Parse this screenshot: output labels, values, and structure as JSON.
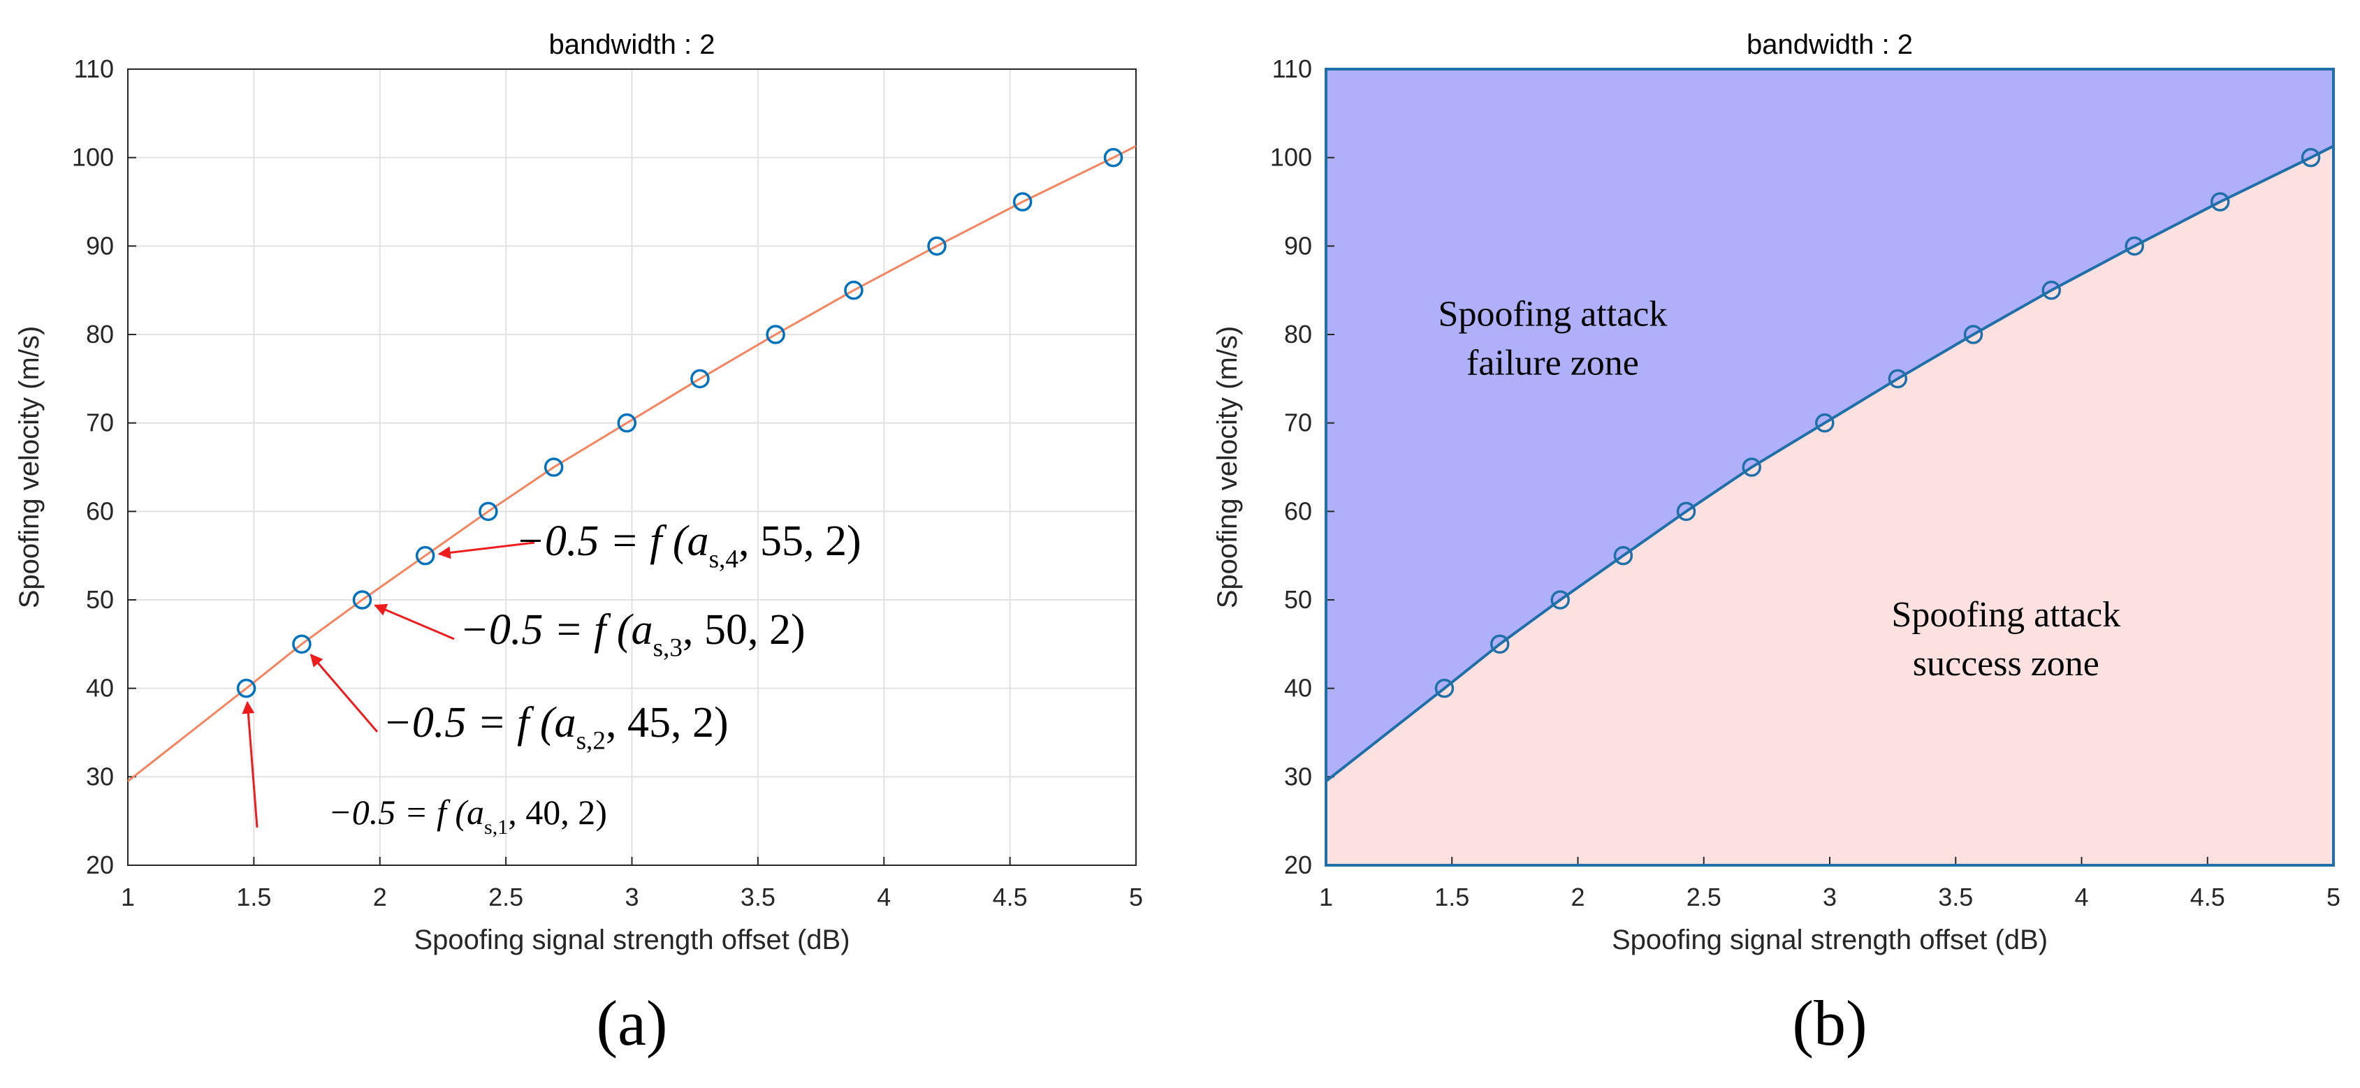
{
  "chart_data": [
    {
      "type": "line",
      "panel_label": "(a)",
      "title": "bandwidth : 2",
      "xlabel": "Spoofing signal strength offset (dB)",
      "ylabel": "Spoofing velocity (m/s)",
      "xlim": [
        1,
        5
      ],
      "ylim": [
        20,
        110
      ],
      "xticks": [
        "1",
        "1.5",
        "2",
        "2.5",
        "3",
        "3.5",
        "4",
        "4.5",
        "5"
      ],
      "yticks": [
        "20",
        "30",
        "40",
        "50",
        "60",
        "70",
        "80",
        "90",
        "100",
        "110"
      ],
      "grid": true,
      "series": [
        {
          "name": "fit",
          "style": "line",
          "color": "#f4845f",
          "x": [
            1.0,
            1.47,
            1.69,
            1.93,
            2.18,
            2.43,
            2.69,
            2.98,
            3.27,
            3.57,
            3.88,
            4.21,
            4.55,
            4.91,
            5.0
          ],
          "y": [
            29.5,
            40,
            45,
            50,
            55,
            60,
            65,
            70,
            75,
            80,
            85,
            90,
            95,
            100,
            101.3
          ]
        },
        {
          "name": "points",
          "style": "markers",
          "color": "#0072bd",
          "x": [
            1.47,
            1.69,
            1.93,
            2.18,
            2.43,
            2.69,
            2.98,
            3.27,
            3.57,
            3.88,
            4.21,
            4.55,
            4.91
          ],
          "y": [
            40,
            45,
            50,
            55,
            60,
            65,
            70,
            75,
            80,
            85,
            90,
            95,
            100
          ]
        }
      ],
      "annotations": [
        {
          "text": "−0.5 = f (a",
          "sub": "s,1",
          "tail": ", 40, 2)",
          "x": 1.47,
          "y": 40
        },
        {
          "text": "−0.5 = f (a",
          "sub": "s,2",
          "tail": ", 45, 2)",
          "x": 1.69,
          "y": 45
        },
        {
          "text": "−0.5 = f (a",
          "sub": "s,3",
          "tail": ", 50, 2)",
          "x": 1.93,
          "y": 50
        },
        {
          "text": "−0.5 = f (a",
          "sub": "s,4",
          "tail": ", 55, 2)",
          "x": 2.18,
          "y": 55
        }
      ]
    },
    {
      "type": "area",
      "panel_label": "(b)",
      "title": "bandwidth : 2",
      "xlabel": "Spoofing signal strength offset (dB)",
      "ylabel": "Spoofing velocity (m/s)",
      "xlim": [
        1,
        5
      ],
      "ylim": [
        20,
        110
      ],
      "xticks": [
        "1",
        "1.5",
        "2",
        "2.5",
        "3",
        "3.5",
        "4",
        "4.5",
        "5"
      ],
      "yticks": [
        "20",
        "30",
        "40",
        "50",
        "60",
        "70",
        "80",
        "90",
        "100",
        "110"
      ],
      "grid": false,
      "boundary": {
        "x": [
          1.0,
          1.47,
          1.69,
          1.93,
          2.18,
          2.43,
          2.69,
          2.98,
          3.27,
          3.57,
          3.88,
          4.21,
          4.55,
          4.91,
          5.0
        ],
        "y": [
          29.5,
          40,
          45,
          50,
          55,
          60,
          65,
          70,
          75,
          80,
          85,
          90,
          95,
          100,
          101.3
        ]
      },
      "points": {
        "x": [
          1.47,
          1.69,
          1.93,
          2.18,
          2.43,
          2.69,
          2.98,
          3.27,
          3.57,
          3.88,
          4.21,
          4.55,
          4.91
        ],
        "y": [
          40,
          45,
          50,
          55,
          60,
          65,
          70,
          75,
          80,
          85,
          90,
          95,
          100
        ]
      },
      "zones": [
        {
          "name": "failure",
          "lines": [
            "Spoofing attack",
            "failure zone"
          ],
          "color": "#b0b0fa",
          "x": 1.9,
          "y": 81
        },
        {
          "name": "success",
          "lines": [
            "Spoofing attack",
            "success zone"
          ],
          "color": "#fde1e1",
          "x": 3.7,
          "y": 47
        }
      ],
      "line_color": "#1f6fa8"
    }
  ]
}
